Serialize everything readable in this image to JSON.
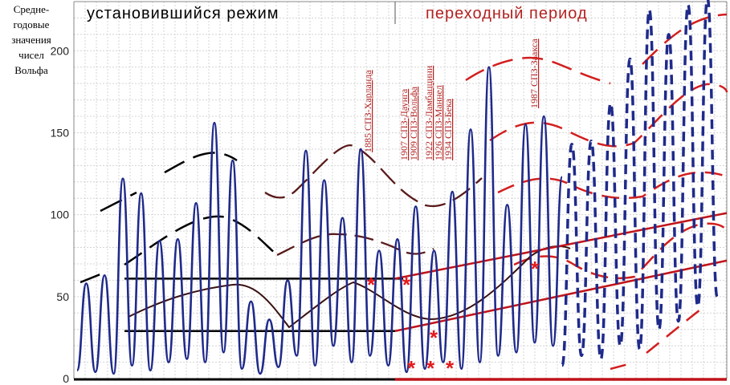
{
  "chart_data": {
    "type": "line",
    "ylabel": [
      "Средне-",
      "годовые",
      "значения",
      "чисел",
      "Вольфа"
    ],
    "ylim": [
      0,
      230
    ],
    "yticks": [
      0,
      50,
      100,
      150,
      200
    ],
    "grid": true,
    "regions": [
      {
        "label": "установившийся режим",
        "color": "#000000"
      },
      {
        "label": "переходный период",
        "color": "#b22222"
      }
    ],
    "annotations": [
      "1885 СПЗ-Харланда",
      "1907 СПЗ-Даунга",
      "1909 СПЗ-Вольфа",
      "1922 СПЗ-Ламбаццини",
      "1926 СПЗ-Маннел",
      "1934 СПЗ-Бека",
      "1987 СПЗ-Заакса"
    ],
    "series": [
      {
        "color": "#1f2a8a",
        "style": "solid",
        "values": [
          5,
          58,
          4,
          63,
          3,
          122,
          8,
          113,
          5,
          84,
          10,
          85,
          12,
          107,
          10,
          156,
          16,
          133,
          6,
          47,
          3,
          36,
          7,
          60,
          14,
          139,
          8,
          121,
          20,
          98,
          10,
          140,
          14,
          78,
          8,
          85,
          4,
          105,
          6,
          78,
          10,
          114,
          6,
          152,
          10,
          190,
          14,
          106,
          16,
          155,
          22,
          160,
          20,
          123
        ]
      },
      {
        "color": "#1f2a8a",
        "style": "dashed",
        "values": [
          8,
          143,
          14,
          145,
          12,
          168,
          20,
          195,
          18,
          225,
          30,
          210,
          35,
          228,
          44,
          232,
          50
        ]
      }
    ],
    "reference_lines": [
      {
        "color": "#000000",
        "y": 61
      },
      {
        "color": "#000000",
        "y": 29
      },
      {
        "color": "#000000",
        "y": 0
      },
      {
        "color": "#b22222",
        "y": 0
      },
      {
        "color": "#b22222",
        "from": 61,
        "to": 101
      },
      {
        "color": "#b22222",
        "from": 29,
        "to": 72
      }
    ],
    "markers": {
      "symbol": "*",
      "color": "#e31a1c",
      "count": 7
    }
  }
}
